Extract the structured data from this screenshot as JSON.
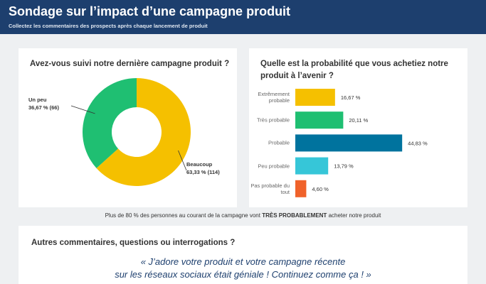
{
  "header": {
    "title": "Sondage sur l’impact d’une campagne produit",
    "subtitle": "Collectez les commentaires des prospects après chaque lancement de produit"
  },
  "chart_data": [
    {
      "type": "pie",
      "title": "Avez-vous suivi notre dernière campagne produit ?",
      "categories": [
        "Beaucoup",
        "Un peu"
      ],
      "values": [
        63.33,
        36.67
      ],
      "value_labels": [
        "63,33 % (114)",
        "36,67 % (66)"
      ],
      "colors": [
        "#f5c000",
        "#1fbf72"
      ],
      "donut": true
    },
    {
      "type": "hbar",
      "title": "Quelle est la probabilité que vous achetiez notre produit à l’avenir ?",
      "categories": [
        "Extrêmement probable",
        "Très probable",
        "Probable",
        "Peu probable",
        "Pas probable du tout"
      ],
      "values": [
        16.67,
        20.11,
        44.83,
        13.79,
        4.6
      ],
      "value_labels": [
        "16,67 %",
        "20,11 %",
        "44,83 %",
        "13,79 %",
        "4,60 %"
      ],
      "colors": [
        "#f5c000",
        "#1fbf72",
        "#00739e",
        "#36c6d8",
        "#f0622a"
      ]
    }
  ],
  "footnote": {
    "before": "Plus de 80 % des personnes au courant de la campagne vont",
    "emphasis": "TRÈS PROBABLEMENT",
    "after": "acheter notre produit"
  },
  "comments": {
    "title": "Autres commentaires, questions ou interrogations ?",
    "quote": [
      "« J’adore votre produit et votre campagne récente",
      "sur les réseaux sociaux était géniale ! Continuez comme ça ! »"
    ]
  }
}
